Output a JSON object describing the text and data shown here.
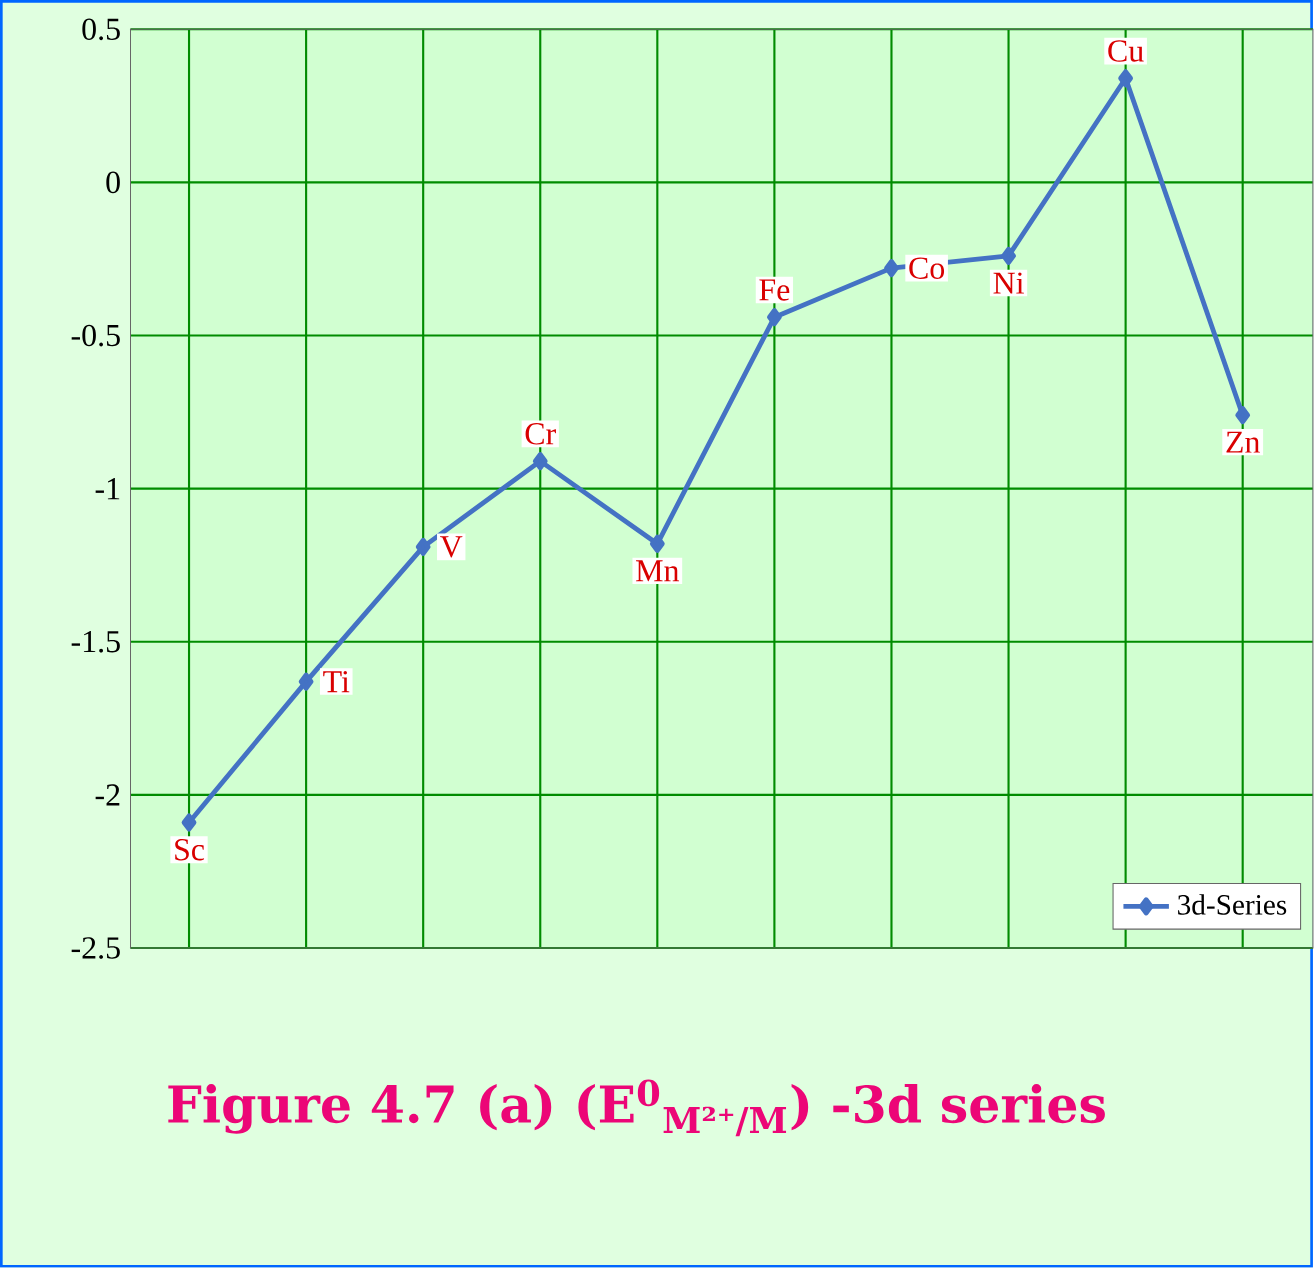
{
  "chart_data": {
    "type": "line",
    "title": "Figure 4.7 (a) (E$^{0}$$_{M²⁺/M}$) -3d series",
    "categories": [
      "Sc",
      "Ti",
      "V",
      "Cr",
      "Mn",
      "Fe",
      "Co",
      "Ni",
      "Cu",
      "Zn"
    ],
    "series": [
      {
        "name": "3d-Series",
        "color": "#4472c4",
        "values": [
          -2.09,
          -1.63,
          -1.19,
          -0.91,
          -1.18,
          -0.44,
          -0.28,
          -0.24,
          0.34,
          -0.76
        ]
      }
    ],
    "ylim": [
      -2.5,
      0.5
    ],
    "yticks": [
      -2.5,
      -2,
      -1.5,
      -1,
      -0.5,
      0,
      0.5
    ],
    "grid": true,
    "legend": "bottom right",
    "marker": "diamond",
    "line_style": "solid",
    "tick_labels": "y"
  }
}
